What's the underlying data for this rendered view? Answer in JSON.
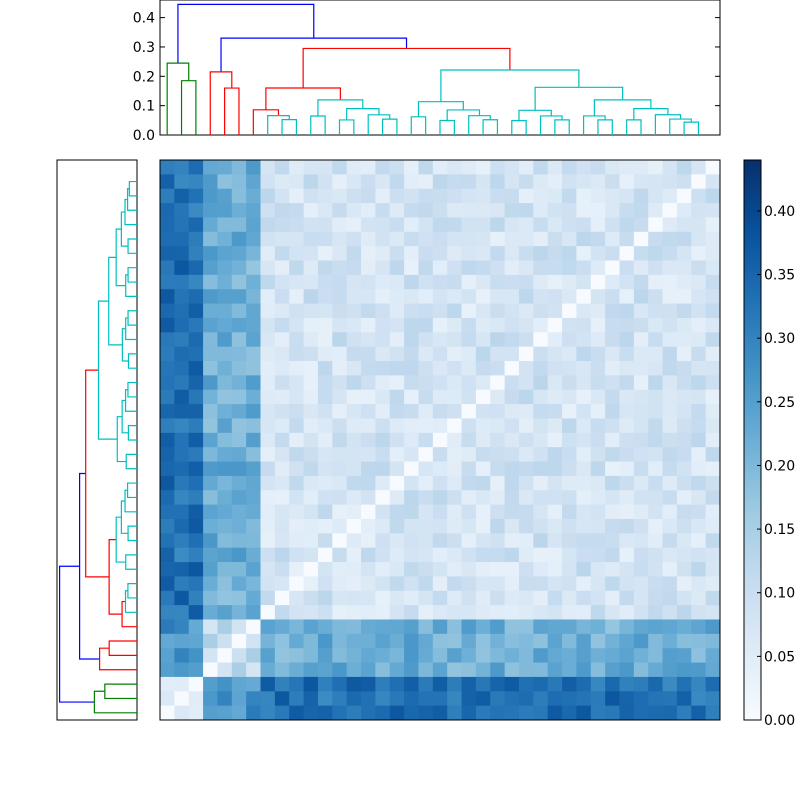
{
  "chart_data": [
    {
      "type": "heatmap",
      "title": "",
      "xlabel": "",
      "ylabel": "",
      "n_leaves": 39,
      "leaf_groups": [
        {
          "color": "#008000",
          "count": 3
        },
        {
          "color": "#ff0000",
          "count": 4
        },
        {
          "color": "#00bfbf",
          "count": 32
        }
      ],
      "cluster_colors": {
        "root": "#0000ff"
      },
      "colormap": [
        "#f7fbff",
        "#deebf7",
        "#c6dbef",
        "#9ecae1",
        "#6baed6",
        "#4292c6",
        "#2171b5",
        "#08519c",
        "#08306b"
      ],
      "vmin": 0.0,
      "vmax": 0.44,
      "grid": false
    },
    {
      "type": "dendrogram",
      "position": "top",
      "yticks": [
        "0.0",
        "0.1",
        "0.2",
        "0.3",
        "0.4"
      ],
      "ylim": [
        0,
        0.46
      ],
      "merge_heights": {
        "root": 0.445,
        "green_red_split": 0.33,
        "green_group": 0.245,
        "green_pair": 0.185,
        "red_group": 0.215,
        "red_sub": 0.16,
        "cyan_group": 0.295,
        "cyan_next": 0.28,
        "cyan_mid": 0.215,
        "cyan_inner": 0.18
      }
    },
    {
      "type": "dendrogram",
      "position": "left",
      "mirrors": "top"
    },
    {
      "type": "colorbar",
      "ticks": [
        "0.00",
        "0.05",
        "0.10",
        "0.15",
        "0.20",
        "0.25",
        "0.30",
        "0.35",
        "0.40"
      ],
      "range": [
        0,
        0.44
      ]
    }
  ]
}
